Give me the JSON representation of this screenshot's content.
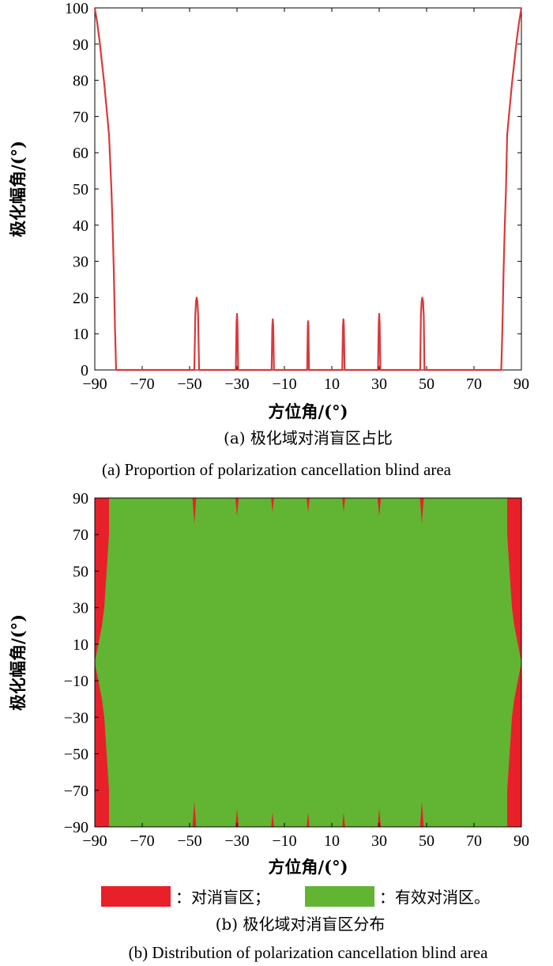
{
  "chart_data": [
    {
      "type": "line",
      "xlabel": "方位角/(°)",
      "ylabel": "极化幅角/(°)",
      "caption_cn": "(a) 极化域对消盲区占比",
      "caption_en": "(a) Proportion of polarization cancellation blind area",
      "xlim": [
        -90,
        90
      ],
      "ylim": [
        0,
        100
      ],
      "xticks": [
        -90,
        -70,
        -50,
        -30,
        -10,
        10,
        30,
        50,
        70,
        90
      ],
      "yticks": [
        0,
        10,
        20,
        30,
        40,
        50,
        60,
        70,
        80,
        90,
        100
      ],
      "line_color": "#d9393a",
      "series": [
        {
          "x": [
            -90,
            -89,
            -88,
            -87,
            -86,
            -85,
            -84,
            -83,
            -82.5,
            -82,
            -81.5,
            -81,
            -80.5,
            -80,
            -79.5,
            -79,
            -48,
            -47.6,
            -47.3,
            -47,
            -46.7,
            -46.4,
            -46,
            -30.5,
            -30.2,
            -30,
            -29.8,
            -29.5,
            -15.4,
            -15.1,
            -14.9,
            -14.7,
            -14.4,
            -0.4,
            -0.15,
            0,
            0.15,
            0.4,
            14.4,
            14.7,
            14.9,
            15.1,
            15.4,
            29.5,
            29.8,
            30,
            30.2,
            30.5,
            47.3,
            47.6,
            47.9,
            48.2,
            48.5,
            48.8,
            49.1,
            81,
            81.5,
            82,
            82.5,
            83,
            83.5,
            84,
            85,
            86,
            87,
            88,
            89,
            90
          ],
          "y": [
            100,
            96,
            91,
            85,
            79,
            72,
            65,
            50,
            40,
            28,
            12,
            0,
            0,
            0,
            0,
            0,
            0,
            15,
            19,
            20,
            19,
            15,
            0,
            0,
            13,
            15.5,
            13,
            0,
            0,
            12,
            14,
            12,
            0,
            0,
            12,
            13.5,
            12,
            0,
            0,
            12,
            14,
            12,
            0,
            0,
            13,
            15.5,
            13,
            0,
            0,
            15,
            19,
            20,
            19,
            15,
            0,
            0,
            0,
            12,
            28,
            40,
            50,
            65,
            72,
            79,
            85,
            91,
            96,
            100
          ]
        }
      ]
    },
    {
      "type": "heatmap",
      "xlabel": "方位角/(°)",
      "ylabel": "极化幅角/(°)",
      "caption_cn": "(b) 极化域对消盲区分布",
      "caption_en": "(b) Distribution of polarization cancellation blind area",
      "xlim": [
        -90,
        90
      ],
      "ylim": [
        -90,
        90
      ],
      "xticks": [
        -90,
        -70,
        -50,
        -30,
        -10,
        10,
        30,
        50,
        70,
        90
      ],
      "yticks": [
        -90,
        -70,
        -50,
        -30,
        -10,
        10,
        30,
        50,
        70,
        90
      ],
      "colors": {
        "blind": "#e8202a",
        "effective": "#62b532"
      },
      "legend": [
        {
          "label": "：对消盲区；",
          "color": "#e8202a"
        },
        {
          "label": "：有效对消区。",
          "color": "#62b532"
        }
      ],
      "blind_edge_left": {
        "y": [
          90,
          80,
          70,
          60,
          50,
          40,
          30,
          20,
          10,
          0,
          -10,
          -20,
          -30,
          -40,
          -50,
          -60,
          -70,
          -80,
          -90
        ],
        "x": [
          -84,
          -84,
          -84,
          -84.5,
          -85,
          -85.5,
          -86,
          -87,
          -88.5,
          -90,
          -88.5,
          -87,
          -86,
          -85.5,
          -85,
          -84.5,
          -84,
          -84,
          -84
        ]
      },
      "blind_edge_right": {
        "y": [
          90,
          80,
          70,
          60,
          50,
          40,
          30,
          20,
          10,
          0,
          -10,
          -20,
          -30,
          -40,
          -50,
          -60,
          -70,
          -80,
          -90
        ],
        "x": [
          84,
          84,
          84,
          84.5,
          85,
          85.5,
          86,
          87,
          88.5,
          90,
          88.5,
          87,
          86,
          85.5,
          85,
          84.5,
          84,
          84,
          84
        ]
      },
      "blind_spikes": [
        {
          "x": -48,
          "depth": 14,
          "half_width": 0.8
        },
        {
          "x": -30,
          "depth": 10,
          "half_width": 0.7
        },
        {
          "x": -15,
          "depth": 8,
          "half_width": 0.6
        },
        {
          "x": 0,
          "depth": 8,
          "half_width": 0.6
        },
        {
          "x": 15,
          "depth": 8,
          "half_width": 0.6
        },
        {
          "x": 30,
          "depth": 10,
          "half_width": 0.7
        },
        {
          "x": 48,
          "depth": 14,
          "half_width": 0.8
        }
      ]
    }
  ]
}
